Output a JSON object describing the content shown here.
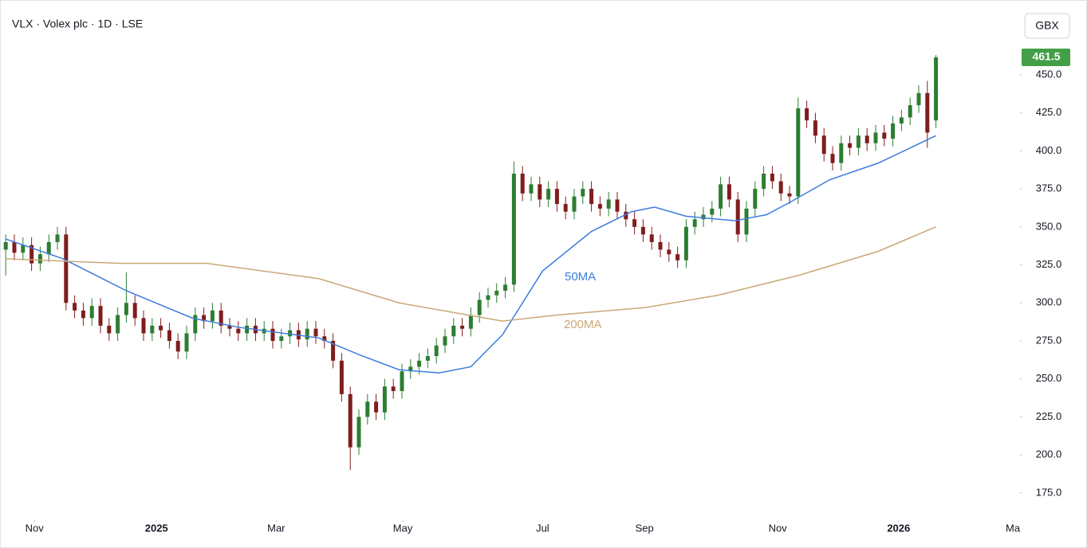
{
  "chart_data": {
    "type": "candlestick",
    "title": "VLX · Volex plc · 1D · LSE",
    "currency_button": "GBX",
    "last_price": 461.5,
    "up_color": "#2e7d32",
    "down_color": "#7f1d1d",
    "last_price_color": "#43a047",
    "xlim": [
      -2,
      353
    ],
    "ylim": [
      158.7,
      499.2
    ],
    "xticks": [
      {
        "value": 10,
        "label": "Nov"
      },
      {
        "value": 52.5,
        "label": "2025"
      },
      {
        "value": 94.2,
        "label": "Mar"
      },
      {
        "value": 138.3,
        "label": "May"
      },
      {
        "value": 187,
        "label": "Jul"
      },
      {
        "value": 222.5,
        "label": "Sep"
      },
      {
        "value": 268.9,
        "label": "Nov"
      },
      {
        "value": 311,
        "label": "2026"
      },
      {
        "value": 350.8,
        "label": "Ma"
      }
    ],
    "yticks": [
      {
        "value": 175,
        "label": "175.0"
      },
      {
        "value": 200,
        "label": "200.0"
      },
      {
        "value": 225,
        "label": "225.0"
      },
      {
        "value": 250,
        "label": "250.0"
      },
      {
        "value": 275,
        "label": "275.0"
      },
      {
        "value": 300,
        "label": "300.0"
      },
      {
        "value": 325,
        "label": "325.0"
      },
      {
        "value": 350,
        "label": "350.0"
      },
      {
        "value": 375,
        "label": "375.0"
      },
      {
        "value": 400,
        "label": "400.0"
      },
      {
        "value": 425,
        "label": "425.0"
      },
      {
        "value": 450,
        "label": "450.0"
      }
    ],
    "candles": {
      "x": [
        0,
        3,
        6,
        9,
        12,
        15,
        18,
        21,
        24,
        27,
        30,
        33,
        36,
        39,
        42,
        45,
        48,
        51,
        54,
        57,
        60,
        63,
        66,
        69,
        72,
        75,
        78,
        81,
        84,
        87,
        90,
        93,
        96,
        99,
        102,
        105,
        108,
        111,
        114,
        117,
        120,
        123,
        126,
        129,
        132,
        135,
        138,
        141,
        144,
        147,
        150,
        153,
        156,
        159,
        162,
        165,
        168,
        171,
        174,
        177,
        180,
        183,
        186,
        189,
        192,
        195,
        198,
        201,
        204,
        207,
        210,
        213,
        216,
        219,
        222,
        225,
        228,
        231,
        234,
        237,
        240,
        243,
        246,
        249,
        252,
        255,
        258,
        261,
        264,
        267,
        270,
        273,
        276,
        279,
        282,
        285,
        288,
        291,
        294,
        297,
        300,
        303,
        306,
        309,
        312,
        315,
        318,
        321,
        324
      ],
      "open": [
        335,
        340,
        333,
        338,
        326,
        332,
        340,
        345,
        300,
        295,
        290,
        298,
        285,
        280,
        292,
        300,
        290,
        280,
        285,
        282,
        275,
        268,
        280,
        292,
        288,
        295,
        285,
        283,
        280,
        285,
        280,
        283,
        275,
        278,
        282,
        276,
        283,
        278,
        275,
        262,
        240,
        205,
        225,
        235,
        228,
        245,
        242,
        255,
        258,
        262,
        265,
        272,
        278,
        285,
        283,
        292,
        302,
        305,
        308,
        312,
        385,
        372,
        378,
        368,
        375,
        365,
        360,
        370,
        375,
        365,
        362,
        368,
        360,
        355,
        350,
        345,
        340,
        335,
        332,
        328,
        350,
        355,
        358,
        362,
        378,
        368,
        345,
        362,
        375,
        385,
        380,
        372,
        370,
        428,
        420,
        410,
        398,
        392,
        405,
        402,
        410,
        405,
        412,
        408,
        418,
        422,
        430,
        438,
        420
      ],
      "high": [
        345,
        345,
        343,
        343,
        337,
        345,
        350,
        350,
        305,
        300,
        303,
        303,
        290,
        297,
        320,
        305,
        295,
        290,
        290,
        287,
        280,
        285,
        297,
        297,
        300,
        300,
        290,
        288,
        290,
        290,
        288,
        288,
        283,
        287,
        287,
        288,
        288,
        283,
        280,
        267,
        245,
        230,
        240,
        240,
        250,
        250,
        260,
        263,
        267,
        270,
        277,
        283,
        290,
        290,
        297,
        307,
        310,
        313,
        317,
        393,
        390,
        383,
        383,
        380,
        380,
        370,
        375,
        380,
        380,
        370,
        373,
        373,
        365,
        360,
        355,
        350,
        345,
        340,
        337,
        355,
        360,
        363,
        367,
        383,
        383,
        373,
        367,
        380,
        390,
        390,
        385,
        377,
        435,
        433,
        425,
        415,
        403,
        410,
        410,
        415,
        415,
        417,
        417,
        423,
        427,
        435,
        443,
        446,
        463
      ],
      "low": [
        318,
        328,
        328,
        321,
        321,
        327,
        335,
        295,
        290,
        285,
        285,
        280,
        275,
        275,
        287,
        285,
        275,
        275,
        277,
        270,
        263,
        263,
        275,
        283,
        283,
        280,
        278,
        275,
        275,
        275,
        275,
        270,
        270,
        273,
        271,
        271,
        273,
        270,
        257,
        235,
        190,
        200,
        220,
        223,
        223,
        237,
        237,
        250,
        253,
        257,
        260,
        267,
        273,
        278,
        278,
        287,
        297,
        300,
        303,
        307,
        367,
        367,
        363,
        363,
        360,
        355,
        355,
        365,
        360,
        357,
        357,
        355,
        350,
        345,
        340,
        335,
        330,
        327,
        323,
        323,
        345,
        350,
        353,
        357,
        363,
        340,
        340,
        357,
        370,
        375,
        367,
        365,
        365,
        415,
        405,
        393,
        387,
        387,
        397,
        397,
        400,
        400,
        403,
        403,
        413,
        417,
        425,
        402,
        415
      ],
      "close": [
        340,
        333,
        338,
        326,
        332,
        340,
        345,
        300,
        295,
        290,
        298,
        285,
        280,
        292,
        300,
        290,
        280,
        285,
        282,
        275,
        268,
        280,
        292,
        288,
        295,
        285,
        283,
        280,
        285,
        280,
        283,
        275,
        278,
        282,
        276,
        283,
        278,
        275,
        262,
        240,
        205,
        225,
        235,
        228,
        245,
        242,
        255,
        258,
        262,
        265,
        272,
        278,
        285,
        283,
        292,
        302,
        305,
        308,
        312,
        385,
        372,
        378,
        368,
        375,
        365,
        360,
        370,
        375,
        365,
        362,
        368,
        360,
        355,
        350,
        345,
        340,
        335,
        332,
        328,
        350,
        355,
        358,
        362,
        378,
        368,
        345,
        362,
        375,
        385,
        380,
        372,
        370,
        428,
        420,
        410,
        398,
        392,
        405,
        402,
        410,
        405,
        412,
        408,
        418,
        422,
        430,
        438,
        412,
        461.5
      ]
    },
    "lines": [
      {
        "name": "50MA",
        "color": "#3b7ddd",
        "x": [
          0,
          20,
          42,
          65,
          81,
          109,
          123,
          137,
          151,
          162,
          173,
          187,
          204,
          218,
          226,
          237,
          254,
          265,
          273,
          287,
          304,
          324
        ],
        "values": [
          342,
          329,
          308,
          290,
          284,
          277,
          266,
          256,
          254,
          258,
          279,
          321,
          347,
          360,
          363,
          357,
          354,
          358,
          366,
          381,
          392,
          410
        ]
      },
      {
        "name": "200MA",
        "color": "#c9a877",
        "x": [
          0,
          40,
          70,
          109,
          137,
          173,
          192,
          223,
          248,
          276,
          304,
          324
        ],
        "values": [
          329,
          326,
          326,
          316,
          300,
          288,
          292,
          297,
          305,
          318,
          334,
          350
        ]
      }
    ]
  }
}
